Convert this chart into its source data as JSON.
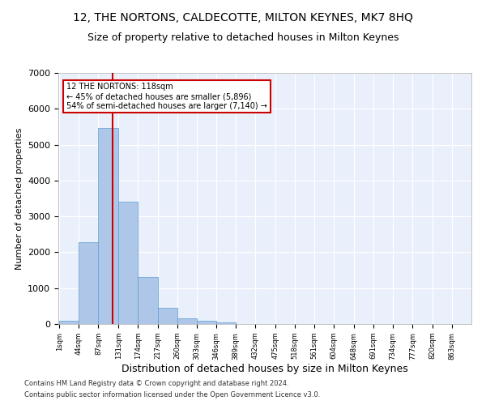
{
  "title": "12, THE NORTONS, CALDECOTTE, MILTON KEYNES, MK7 8HQ",
  "subtitle": "Size of property relative to detached houses in Milton Keynes",
  "xlabel": "Distribution of detached houses by size in Milton Keynes",
  "ylabel": "Number of detached properties",
  "footnote1": "Contains HM Land Registry data © Crown copyright and database right 2024.",
  "footnote2": "Contains public sector information licensed under the Open Government Licence v3.0.",
  "bar_edges": [
    1,
    44,
    87,
    131,
    174,
    217,
    260,
    303,
    346,
    389,
    432,
    475,
    518,
    561,
    604,
    648,
    691,
    734,
    777,
    820,
    863
  ],
  "bar_heights": [
    80,
    2290,
    5460,
    3420,
    1310,
    460,
    155,
    90,
    45,
    0,
    0,
    0,
    0,
    0,
    0,
    0,
    0,
    0,
    0,
    0
  ],
  "bar_color": "#aec6e8",
  "bar_edge_color": "#5a9fd4",
  "vline_x": 118,
  "vline_color": "#cc0000",
  "annotation_text": "12 THE NORTONS: 118sqm\n← 45% of detached houses are smaller (5,896)\n54% of semi-detached houses are larger (7,140) →",
  "annotation_box_color": "#cc0000",
  "ylim": [
    0,
    7000
  ],
  "yticks": [
    0,
    1000,
    2000,
    3000,
    4000,
    5000,
    6000,
    7000
  ],
  "bg_color": "#eaf0fb",
  "grid_color": "#ffffff",
  "title_fontsize": 10,
  "subtitle_fontsize": 9,
  "xlabel_fontsize": 9,
  "ylabel_fontsize": 8,
  "footnote_fontsize": 6,
  "tick_fontsize": 6,
  "tick_labels": [
    "1sqm",
    "44sqm",
    "87sqm",
    "131sqm",
    "174sqm",
    "217sqm",
    "260sqm",
    "303sqm",
    "346sqm",
    "389sqm",
    "432sqm",
    "475sqm",
    "518sqm",
    "561sqm",
    "604sqm",
    "648sqm",
    "691sqm",
    "734sqm",
    "777sqm",
    "820sqm",
    "863sqm"
  ]
}
